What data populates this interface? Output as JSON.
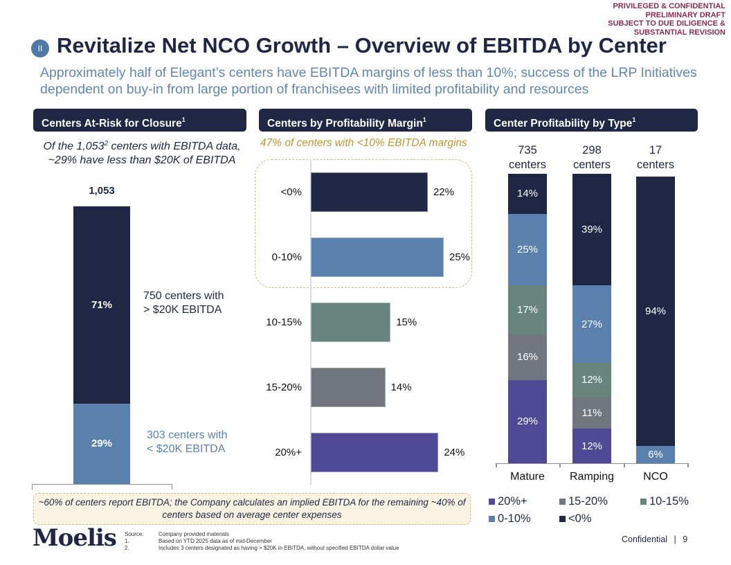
{
  "stamp": [
    "PRIVILEGED & CONFIDENTIAL",
    "PRELIMINARY DRAFT",
    "SUBJECT TO DUE DILIGENCE &",
    "SUBSTANTIAL REVISION"
  ],
  "header": {
    "section_badge": "II",
    "title": "Revitalize Net NCO Growth – Overview of EBITDA by Center",
    "subtitle": "Approximately half of Elegant’s centers have EBITDA margins of less than 10%; success of the LRP Initiatives dependent on buy-in from large portion of franchisees with limited profitability and resources"
  },
  "panels": {
    "at_risk": {
      "title": "Centers At-Risk for Closure",
      "footnote_ref": "1"
    },
    "by_margin": {
      "title": "Centers by Profitability Margin",
      "footnote_ref": "1"
    },
    "by_type": {
      "title": "Center Profitability by Type",
      "footnote_ref": "1"
    }
  },
  "colors": {
    "navy": "#1f2744",
    "blue": "#5a81ae",
    "teal": "#67857d",
    "gray": "#72767f",
    "purple": "#4f4996",
    "gold": "#c2962f",
    "stamp": "#8b2a4f"
  },
  "chart_data": [
    {
      "type": "bar",
      "stacked": true,
      "title": "Centers At-Risk for Closure",
      "caption_pre": "Of the 1,053",
      "caption_sup": "2",
      "caption_post": " centers with EBITDA data, ~29% have less than $20K of EBITDA",
      "total_label": "1,053",
      "total": 1053,
      "segments": [
        {
          "name": "> $20K EBITDA",
          "count": 750,
          "percent": 71,
          "label": "71%",
          "annotation": [
            "750 centers with",
            "> $20K EBITDA"
          ],
          "color": "#1f2744"
        },
        {
          "name": "< $20K EBITDA",
          "count": 303,
          "percent": 29,
          "label": "29%",
          "annotation": [
            "303 centers with",
            "< $20K EBITDA"
          ],
          "color": "#5a81ae"
        }
      ]
    },
    {
      "type": "bar",
      "orientation": "horizontal",
      "title": "Centers by Profitability Margin",
      "caption": "47% of centers with <10% EBITDA margins",
      "highlighted_categories": [
        "<0%",
        "0-10%"
      ],
      "categories": [
        "<0%",
        "0-10%",
        "10-15%",
        "15-20%",
        "20%+"
      ],
      "values": [
        22,
        25,
        15,
        14,
        24
      ],
      "labels": [
        "22%",
        "25%",
        "15%",
        "14%",
        "24%"
      ],
      "colors": [
        "#1f2744",
        "#5a81ae",
        "#67857d",
        "#72767f",
        "#4f4996"
      ],
      "xlim": [
        0,
        30
      ],
      "unit": "%"
    },
    {
      "type": "bar",
      "stacked": true,
      "percent_stacked": true,
      "title": "Center Profitability by Type",
      "categories": [
        "Mature",
        "Ramping",
        "NCO"
      ],
      "center_counts": [
        {
          "count": "735",
          "unit": "centers"
        },
        {
          "count": "298",
          "unit": "centers"
        },
        {
          "count": "17",
          "unit": "centers"
        }
      ],
      "series": [
        {
          "name": "20%+",
          "color": "#4f4996",
          "values": [
            29,
            12,
            0
          ]
        },
        {
          "name": "15-20%",
          "color": "#72767f",
          "values": [
            16,
            11,
            0
          ]
        },
        {
          "name": "10-15%",
          "color": "#67857d",
          "values": [
            17,
            12,
            0
          ]
        },
        {
          "name": "0-10%",
          "color": "#5a81ae",
          "values": [
            25,
            27,
            6
          ]
        },
        {
          "name": "<0%",
          "color": "#1f2744",
          "values": [
            14,
            39,
            94
          ]
        }
      ],
      "ylim": [
        0,
        100
      ],
      "legend": "bottom"
    }
  ],
  "legend": [
    {
      "label": "20%+",
      "color": "#4f4996"
    },
    {
      "label": "15-20%",
      "color": "#72767f"
    },
    {
      "label": "10-15%",
      "color": "#67857d"
    },
    {
      "label": "0-10%",
      "color": "#5a81ae"
    },
    {
      "label": "<0%",
      "color": "#1f2744"
    }
  ],
  "note": "~60% of centers report EBITDA; the Company calculates an implied EBITDA for the remaining ~40% of centers based on average center expenses",
  "footer": {
    "logo": "Moelis",
    "footnotes": [
      {
        "key": "Source:",
        "text": "Company provided materials"
      },
      {
        "key": "1.",
        "text": "Based on YTD 2025 data as of mid-December"
      },
      {
        "key": "2.",
        "text": "Includes 3 centers designated as having > $20K in EBITDA, without specified EBITDA dollar value"
      }
    ],
    "confidential": "Confidential",
    "separator": "|",
    "page_number": "9"
  }
}
